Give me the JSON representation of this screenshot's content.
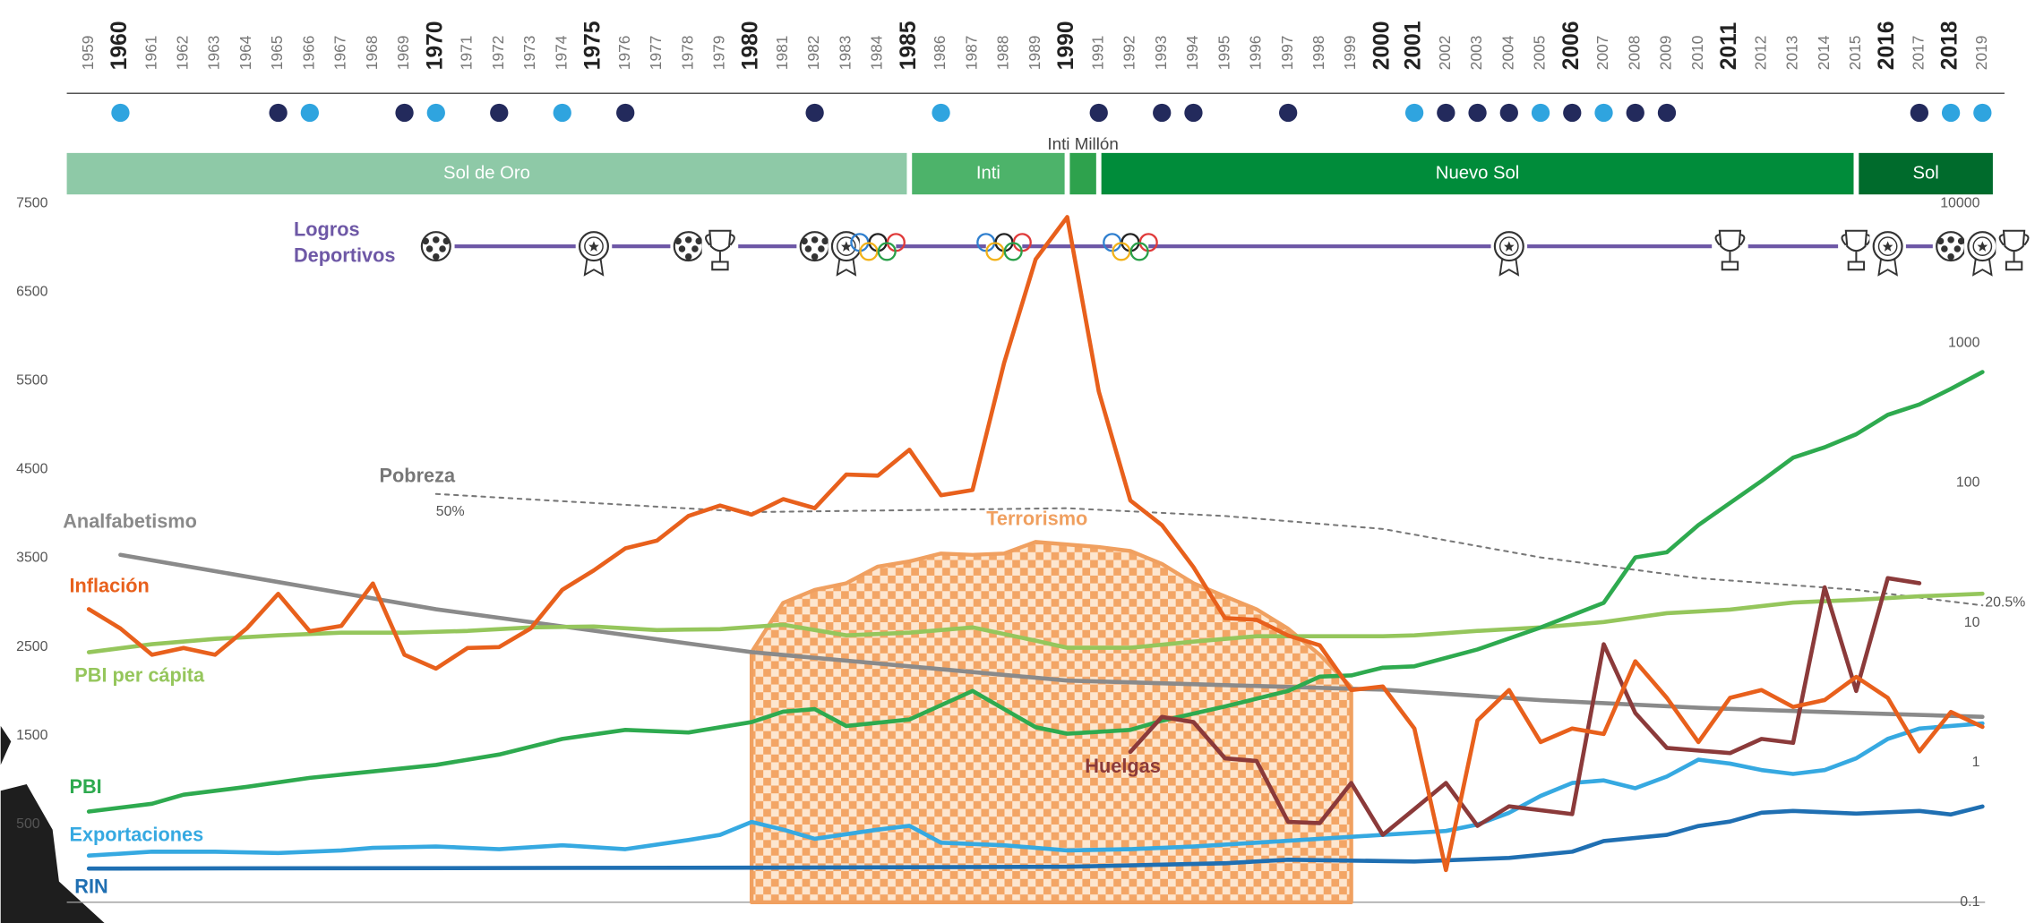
{
  "chart_data": {
    "type": "line",
    "x": [
      1959,
      1960,
      1961,
      1962,
      1963,
      1964,
      1965,
      1966,
      1967,
      1968,
      1969,
      1970,
      1971,
      1972,
      1973,
      1974,
      1975,
      1976,
      1977,
      1978,
      1979,
      1980,
      1981,
      1982,
      1983,
      1984,
      1985,
      1986,
      1987,
      1988,
      1989,
      1990,
      1991,
      1992,
      1993,
      1994,
      1995,
      1996,
      1997,
      1998,
      1999,
      2000,
      2001,
      2002,
      2003,
      2004,
      2005,
      2006,
      2007,
      2008,
      2009,
      2010,
      2011,
      2012,
      2013,
      2014,
      2015,
      2016,
      2017,
      2018,
      2019
    ],
    "xticks_bold": [
      1960,
      1970,
      1975,
      1980,
      1985,
      1990,
      2000,
      2001,
      2006,
      2011,
      2016,
      2018
    ],
    "events": [
      {
        "year": 1960,
        "color": "#2fa4df"
      },
      {
        "year": 1965,
        "color": "#232a5c"
      },
      {
        "year": 1966,
        "color": "#2fa4df"
      },
      {
        "year": 1969,
        "color": "#232a5c"
      },
      {
        "year": 1970,
        "color": "#2fa4df"
      },
      {
        "year": 1972,
        "color": "#232a5c"
      },
      {
        "year": 1974,
        "color": "#2fa4df"
      },
      {
        "year": 1976,
        "color": "#232a5c"
      },
      {
        "year": 1982,
        "color": "#232a5c"
      },
      {
        "year": 1986,
        "color": "#2fa4df"
      },
      {
        "year": 1991,
        "color": "#232a5c"
      },
      {
        "year": 1993,
        "color": "#232a5c"
      },
      {
        "year": 1994,
        "color": "#232a5c"
      },
      {
        "year": 1997,
        "color": "#232a5c"
      },
      {
        "year": 2001,
        "color": "#2fa4df"
      },
      {
        "year": 2002,
        "color": "#232a5c"
      },
      {
        "year": 2003,
        "color": "#232a5c"
      },
      {
        "year": 2004,
        "color": "#232a5c"
      },
      {
        "year": 2005,
        "color": "#2fa4df"
      },
      {
        "year": 2006,
        "color": "#232a5c"
      },
      {
        "year": 2007,
        "color": "#2fa4df"
      },
      {
        "year": 2008,
        "color": "#232a5c"
      },
      {
        "year": 2009,
        "color": "#232a5c"
      },
      {
        "year": 2017,
        "color": "#232a5c"
      },
      {
        "year": 2018,
        "color": "#2fa4df"
      },
      {
        "year": 2019,
        "color": "#2fa4df"
      }
    ],
    "currencies": [
      {
        "name": "Sol de Oro",
        "from": 1959,
        "to": 1985,
        "color": "#8ec9a7"
      },
      {
        "name": "Inti",
        "from": 1985,
        "to": 1990,
        "color": "#4db36a"
      },
      {
        "name": "Inti Millón",
        "from": 1990,
        "to": 1991,
        "color": "#2ea24d"
      },
      {
        "name": "Nuevo Sol",
        "from": 1991,
        "to": 2015,
        "color": "#008c3a"
      },
      {
        "name": "Sol",
        "from": 2015,
        "to": 2019,
        "color": "#006b2c"
      }
    ],
    "sports": {
      "title": [
        "Logros",
        "Deportivos"
      ],
      "color": "#6e58a6",
      "items": [
        {
          "year": 1970,
          "icon": "ball"
        },
        {
          "year": 1975,
          "icon": "medal"
        },
        {
          "year": 1978,
          "icon": "ball"
        },
        {
          "year": 1979,
          "icon": "trophy"
        },
        {
          "year": 1982,
          "icon": "ball"
        },
        {
          "year": 1983,
          "icon": "medal"
        },
        {
          "year": 1984,
          "icon": "rings"
        },
        {
          "year": 1988,
          "icon": "rings"
        },
        {
          "year": 1992,
          "icon": "rings"
        },
        {
          "year": 2004,
          "icon": "medal"
        },
        {
          "year": 2011,
          "icon": "trophy"
        },
        {
          "year": 2015,
          "icon": "trophy"
        },
        {
          "year": 2016,
          "icon": "medal"
        },
        {
          "year": 2018,
          "icon": "ball"
        },
        {
          "year": 2019,
          "icon": "medal"
        },
        {
          "year": 2020,
          "icon": "trophy"
        }
      ]
    },
    "ylim": [
      -380,
      7500
    ],
    "yticks": [
      500,
      1500,
      2500,
      3500,
      4500,
      5500,
      6500,
      7500
    ],
    "y2lim": [
      0.1,
      10000
    ],
    "y2ticks": [
      0.1,
      1,
      10,
      100,
      1000,
      10000
    ],
    "y2_log": true,
    "series": [
      {
        "name": "Terrorismo",
        "type": "area",
        "color": "#f0a060",
        "x": [
          1980,
          1981,
          1982,
          1983,
          1984,
          1985,
          1986,
          1987,
          1988,
          1989,
          1990,
          1991,
          1992,
          1993,
          1994,
          1995,
          1996,
          1997,
          1998,
          1999
        ],
        "values": [
          2441,
          2997,
          3143,
          3218,
          3406,
          3465,
          3553,
          3538,
          3553,
          3684,
          3655,
          3626,
          3582,
          3436,
          3218,
          3070,
          2924,
          2705,
          2412,
          2047
        ]
      },
      {
        "name": "Pobreza",
        "color": "#777777",
        "dashed": true,
        "start_label": "50%",
        "end_label": "20.5%",
        "x": [
          1970,
          1980,
          1990,
          1995,
          2000,
          2005,
          2010,
          2015,
          2019
        ],
        "values": [
          4225,
          4020,
          4064,
          3976,
          3830,
          3509,
          3275,
          3143,
          2968
        ]
      },
      {
        "name": "Analfabetismo",
        "color": "#8a8a8a",
        "x": [
          1960,
          1970,
          1980,
          1990,
          2000,
          2005,
          2010,
          2015,
          2019
        ],
        "values": [
          3538,
          2924,
          2441,
          2120,
          2018,
          1900,
          1813,
          1754,
          1711
        ]
      },
      {
        "name": "PBI per cápita",
        "color": "#95c65c",
        "x": [
          1959,
          1961,
          1963,
          1965,
          1967,
          1969,
          1971,
          1973,
          1975,
          1977,
          1979,
          1981,
          1983,
          1985,
          1987,
          1989,
          1990,
          1992,
          1994,
          1996,
          1998,
          2000,
          2001,
          2003,
          2005,
          2007,
          2009,
          2011,
          2013,
          2015,
          2017,
          2019
        ],
        "values": [
          2440,
          2530,
          2590,
          2630,
          2660,
          2660,
          2680,
          2720,
          2730,
          2690,
          2700,
          2750,
          2630,
          2660,
          2720,
          2570,
          2490,
          2490,
          2560,
          2620,
          2620,
          2620,
          2630,
          2680,
          2720,
          2780,
          2880,
          2920,
          3000,
          3030,
          3070,
          3100
        ]
      },
      {
        "name": "PBI",
        "color": "#2eaa4f",
        "x": [
          1959,
          1961,
          1962,
          1964,
          1966,
          1968,
          1970,
          1972,
          1974,
          1976,
          1978,
          1980,
          1981,
          1982,
          1983,
          1985,
          1987,
          1989,
          1990,
          1992,
          1993,
          1995,
          1997,
          1998,
          1999,
          2000,
          2001,
          2003,
          2005,
          2007,
          2008,
          2009,
          2010,
          2012,
          2013,
          2014,
          2015,
          2016,
          2017,
          2018,
          2019
        ],
        "values": [
          643,
          731,
          833,
          921,
          1023,
          1096,
          1169,
          1286,
          1462,
          1564,
          1535,
          1652,
          1769,
          1798,
          1608,
          1681,
          2003,
          1594,
          1521,
          1564,
          1667,
          1828,
          2003,
          2164,
          2178,
          2266,
          2281,
          2471,
          2719,
          2997,
          3509,
          3567,
          3874,
          4371,
          4634,
          4751,
          4898,
          5117,
          5234,
          5410,
          5600
        ]
      },
      {
        "name": "Exportaciones",
        "color": "#36a9e1",
        "x": [
          1959,
          1961,
          1963,
          1965,
          1967,
          1968,
          1970,
          1972,
          1974,
          1976,
          1978,
          1979,
          1980,
          1981,
          1982,
          1984,
          1985,
          1986,
          1988,
          1990,
          1992,
          1994,
          1996,
          1998,
          2000,
          2002,
          2003,
          2004,
          2005,
          2006,
          2007,
          2008,
          2009,
          2010,
          2011,
          2012,
          2013,
          2014,
          2015,
          2016,
          2017,
          2018,
          2019
        ],
        "values": [
          146,
          190,
          190,
          175,
          205,
          234,
          249,
          219,
          263,
          219,
          322,
          380,
          526,
          439,
          336,
          439,
          482,
          292,
          263,
          205,
          219,
          249,
          292,
          336,
          380,
          424,
          497,
          629,
          819,
          965,
          994,
          906,
          1038,
          1228,
          1184,
          1111,
          1067,
          1111,
          1243,
          1462,
          1579,
          1608,
          1637
        ]
      },
      {
        "name": "RIN",
        "color": "#1f6fb2",
        "x": [
          1959,
          1980,
          1990,
          1995,
          1997,
          2001,
          2004,
          2006,
          2007,
          2009,
          2010,
          2011,
          2012,
          2013,
          2015,
          2017,
          2018,
          2019
        ],
        "values": [
          0,
          10,
          20,
          60,
          100,
          80,
          120,
          190,
          310,
          380,
          480,
          530,
          630,
          650,
          620,
          650,
          610,
          700
        ]
      },
      {
        "name": "Huelgas",
        "color": "#8b3a3a",
        "x": [
          1992,
          1993,
          1994,
          1995,
          1996,
          1997,
          1998,
          1999,
          2000,
          2001,
          2002,
          2003,
          2004,
          2006,
          2007,
          2008,
          2009,
          2011,
          2012,
          2013,
          2014,
          2015,
          2016,
          2017
        ],
        "values": [
          1316,
          1710,
          1652,
          1243,
          1213,
          526,
          512,
          965,
          380,
          670,
          965,
          482,
          702,
          614,
          2530,
          1754,
          1360,
          1302,
          1462,
          1418,
          3172,
          2003,
          3275,
          3218
        ]
      },
      {
        "name": "Inflación",
        "color": "#e8601c",
        "axis": "y2",
        "values": [
          12.5,
          9.1,
          5.9,
          6.6,
          5.9,
          9.1,
          16.1,
          8.7,
          9.5,
          19.1,
          5.9,
          4.7,
          6.6,
          6.7,
          9.1,
          17.2,
          23.7,
          34.1,
          38.7,
          58.1,
          69,
          59.4,
          76.7,
          66.1,
          115,
          113,
          173,
          81.8,
          89.1,
          723,
          3990,
          8000,
          452,
          75,
          50,
          25,
          10.8,
          10.5,
          8.1,
          6.9,
          3.3,
          3.5,
          1.75,
          0.17,
          2,
          3.3,
          1.4,
          1.75,
          1.6,
          5.3,
          2.9,
          1.4,
          2.9,
          3.3,
          2.5,
          2.8,
          4.1,
          2.9,
          1.2,
          2.3,
          1.8
        ]
      }
    ]
  }
}
